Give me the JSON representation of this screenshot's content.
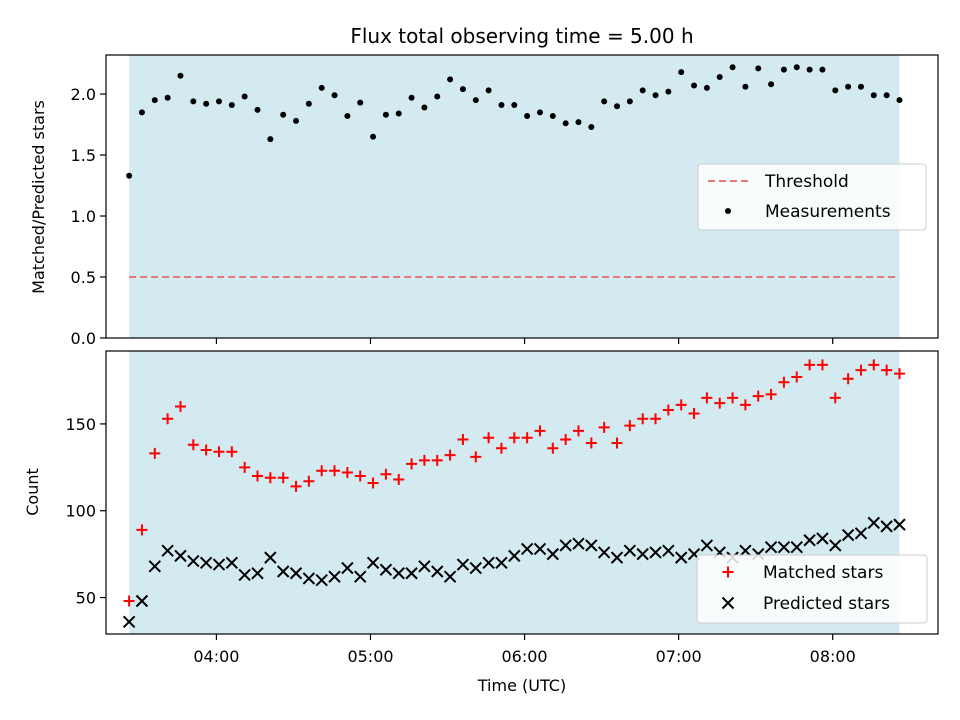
{
  "chart_data": [
    {
      "type": "scatter",
      "title": "Flux total observing time = 5.00 h",
      "xlabel": "",
      "ylabel": "Matched/Predicted stars",
      "xlim": [
        "03:17",
        "08:41"
      ],
      "ylim": [
        0,
        2.32
      ],
      "yticks": [
        0.0,
        0.5,
        1.0,
        1.5,
        2.0
      ],
      "ytick_labels": [
        "0.0",
        "0.5",
        "1.0",
        "1.5",
        "2.0"
      ],
      "observing_window": [
        "03:26",
        "08:26"
      ],
      "threshold": 0.5,
      "legend": {
        "position": "center-right",
        "entries": [
          "Threshold",
          "Measurements"
        ]
      },
      "series": [
        {
          "name": "Measurements",
          "x": [
            "03:26",
            "03:31",
            "03:36",
            "03:41",
            "03:46",
            "03:51",
            "03:56",
            "04:01",
            "04:06",
            "04:11",
            "04:16",
            "04:21",
            "04:26",
            "04:31",
            "04:36",
            "04:41",
            "04:46",
            "04:51",
            "04:56",
            "05:01",
            "05:06",
            "05:11",
            "05:16",
            "05:21",
            "05:26",
            "05:31",
            "05:36",
            "05:41",
            "05:46",
            "05:51",
            "05:56",
            "06:01",
            "06:06",
            "06:11",
            "06:16",
            "06:21",
            "06:26",
            "06:31",
            "06:36",
            "06:41",
            "06:46",
            "06:51",
            "06:56",
            "07:01",
            "07:06",
            "07:11",
            "07:16",
            "07:21",
            "07:26",
            "07:31",
            "07:36",
            "07:41",
            "07:46",
            "07:51",
            "07:56",
            "08:01",
            "08:06",
            "08:11",
            "08:16",
            "08:21",
            "08:26"
          ],
          "values": [
            1.33,
            1.85,
            1.95,
            1.97,
            2.15,
            1.94,
            1.92,
            1.94,
            1.91,
            1.98,
            1.87,
            1.63,
            1.83,
            1.78,
            1.92,
            2.05,
            1.99,
            1.82,
            1.93,
            1.65,
            1.83,
            1.84,
            1.97,
            1.89,
            1.98,
            2.12,
            2.04,
            1.95,
            2.03,
            1.91,
            1.91,
            1.82,
            1.85,
            1.82,
            1.76,
            1.77,
            1.73,
            1.94,
            1.9,
            1.94,
            2.03,
            1.99,
            2.02,
            2.18,
            2.07,
            2.05,
            2.14,
            2.22,
            2.06,
            2.21,
            2.08,
            2.2,
            2.22,
            2.2,
            2.2,
            2.03,
            2.06,
            2.06,
            1.99,
            1.99,
            1.95
          ]
        }
      ]
    },
    {
      "type": "scatter",
      "title": "",
      "xlabel": "Time (UTC)",
      "ylabel": "Count",
      "xlim": [
        "03:17",
        "08:41"
      ],
      "ylim": [
        29,
        192
      ],
      "yticks": [
        50,
        100,
        150
      ],
      "ytick_labels": [
        "50",
        "100",
        "150"
      ],
      "xtick_labels": [
        "04:00",
        "05:00",
        "06:00",
        "07:00",
        "08:00"
      ],
      "observing_window": [
        "03:26",
        "08:26"
      ],
      "legend": {
        "position": "bottom-right",
        "entries": [
          "Matched stars",
          "Predicted stars"
        ]
      },
      "x": [
        "03:26",
        "03:31",
        "03:36",
        "03:41",
        "03:46",
        "03:51",
        "03:56",
        "04:01",
        "04:06",
        "04:11",
        "04:16",
        "04:21",
        "04:26",
        "04:31",
        "04:36",
        "04:41",
        "04:46",
        "04:51",
        "04:56",
        "05:01",
        "05:06",
        "05:11",
        "05:16",
        "05:21",
        "05:26",
        "05:31",
        "05:36",
        "05:41",
        "05:46",
        "05:51",
        "05:56",
        "06:01",
        "06:06",
        "06:11",
        "06:16",
        "06:21",
        "06:26",
        "06:31",
        "06:36",
        "06:41",
        "06:46",
        "06:51",
        "06:56",
        "07:01",
        "07:06",
        "07:11",
        "07:16",
        "07:21",
        "07:26",
        "07:31",
        "07:36",
        "07:41",
        "07:46",
        "07:51",
        "07:56",
        "08:01",
        "08:06",
        "08:11",
        "08:16",
        "08:21",
        "08:26"
      ],
      "series": [
        {
          "name": "Matched stars",
          "values": [
            48,
            89,
            133,
            153,
            160,
            138,
            135,
            134,
            134,
            125,
            120,
            119,
            119,
            114,
            117,
            123,
            123,
            122,
            120,
            116,
            121,
            118,
            127,
            129,
            129,
            132,
            141,
            131,
            142,
            136,
            142,
            142,
            146,
            136,
            141,
            146,
            139,
            148,
            139,
            149,
            153,
            153,
            158,
            161,
            156,
            165,
            162,
            165,
            161,
            166,
            167,
            174,
            177,
            184,
            184,
            165,
            176,
            181,
            184,
            181,
            179
          ]
        },
        {
          "name": "Predicted stars",
          "values": [
            36,
            48,
            68,
            77,
            74,
            71,
            70,
            69,
            70,
            63,
            64,
            73,
            65,
            64,
            61,
            60,
            62,
            67,
            62,
            70,
            66,
            64,
            64,
            68,
            65,
            62,
            69,
            67,
            70,
            70,
            74,
            78,
            78,
            75,
            80,
            81,
            80,
            76,
            73,
            77,
            75,
            76,
            77,
            73,
            75,
            80,
            76,
            73,
            77,
            75,
            79,
            79,
            79,
            83,
            84,
            80,
            86,
            87,
            93,
            91,
            92
          ]
        }
      ]
    }
  ],
  "colors": {
    "observing_window": "#d3eaf0",
    "threshold": "#e87878",
    "measurements": "#000000",
    "matched": "#ff0000",
    "predicted": "#000000"
  }
}
